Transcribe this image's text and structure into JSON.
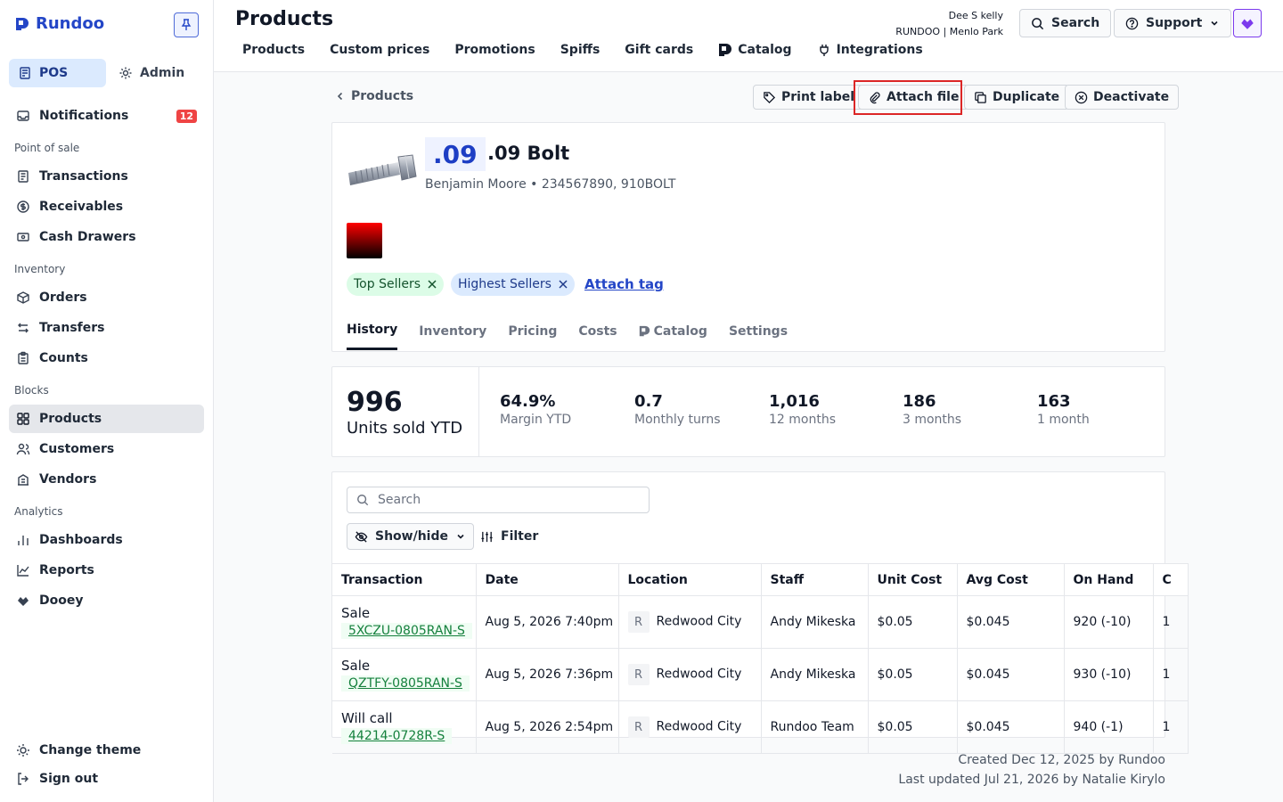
{
  "brand": {
    "name": "Rundoo"
  },
  "sidebar": {
    "modes": [
      {
        "label": "POS",
        "icon": "store-icon"
      },
      {
        "label": "Admin",
        "icon": "gear-icon"
      }
    ],
    "notifications": {
      "label": "Notifications",
      "count": "12"
    },
    "sections": [
      {
        "title": "Point of sale",
        "items": [
          {
            "label": "Transactions"
          },
          {
            "label": "Receivables"
          },
          {
            "label": "Cash Drawers"
          }
        ]
      },
      {
        "title": "Inventory",
        "items": [
          {
            "label": "Orders"
          },
          {
            "label": "Transfers"
          },
          {
            "label": "Counts"
          }
        ]
      },
      {
        "title": "Blocks",
        "items": [
          {
            "label": "Products"
          },
          {
            "label": "Customers"
          },
          {
            "label": "Vendors"
          }
        ]
      },
      {
        "title": "Analytics",
        "items": [
          {
            "label": "Dashboards"
          },
          {
            "label": "Reports"
          },
          {
            "label": "Dooey"
          }
        ]
      }
    ],
    "bottom": [
      {
        "label": "Change theme"
      },
      {
        "label": "Sign out"
      }
    ]
  },
  "header": {
    "title": "Products",
    "tabs": [
      {
        "label": "Products"
      },
      {
        "label": "Custom prices"
      },
      {
        "label": "Promotions"
      },
      {
        "label": "Spiffs"
      },
      {
        "label": "Gift cards"
      },
      {
        "label": "Catalog"
      },
      {
        "label": "Integrations"
      }
    ],
    "user": {
      "name": "Dee S kelly",
      "org": "RUNDOO | Menlo Park"
    },
    "search_label": "Search",
    "support_label": "Support"
  },
  "product": {
    "back_label": "Products",
    "actions": {
      "print": "Print label",
      "attach": "Attach file",
      "duplicate": "Duplicate",
      "deactivate": "Deactivate"
    },
    "sku_chip": ".09",
    "name": ".09 Bolt",
    "meta": "Benjamin Moore • 234567890, 910BOLT",
    "tags": [
      {
        "label": "Top Sellers"
      },
      {
        "label": "Highest Sellers"
      }
    ],
    "attach_tag": "Attach tag",
    "tabs": [
      {
        "label": "History"
      },
      {
        "label": "Inventory"
      },
      {
        "label": "Pricing"
      },
      {
        "label": "Costs"
      },
      {
        "label": "Catalog"
      },
      {
        "label": "Settings"
      }
    ],
    "active_tab": "History"
  },
  "stats": {
    "main": {
      "value": "996",
      "label": "Units sold YTD"
    },
    "items": [
      {
        "value": "64.9%",
        "label": "Margin YTD"
      },
      {
        "value": "0.7",
        "label": "Monthly turns"
      },
      {
        "value": "1,016",
        "label": "12 months"
      },
      {
        "value": "186",
        "label": "3 months"
      },
      {
        "value": "163",
        "label": "1 month"
      }
    ]
  },
  "history": {
    "search_placeholder": "Search",
    "showhide_label": "Show/hide",
    "filter_label": "Filter",
    "columns": [
      "Transaction",
      "Date",
      "Location",
      "Staff",
      "Unit Cost",
      "Avg Cost",
      "On Hand",
      "C"
    ],
    "rows": [
      {
        "type": "Sale",
        "id": "5XCZU-0805RAN-S",
        "date": "Aug 5, 2026 7:40pm",
        "loc_chip": "R",
        "location": "Redwood City",
        "staff": "Andy Mikeska",
        "unit_cost": "$0.05",
        "avg_cost": "$0.045",
        "on_hand": "920 (-10)",
        "extra": "1"
      },
      {
        "type": "Sale",
        "id": "QZTFY-0805RAN-S",
        "date": "Aug 5, 2026 7:36pm",
        "loc_chip": "R",
        "location": "Redwood City",
        "staff": "Andy Mikeska",
        "unit_cost": "$0.05",
        "avg_cost": "$0.045",
        "on_hand": "930 (-10)",
        "extra": "1"
      },
      {
        "type": "Will call",
        "id": "44214-0728R-S",
        "date": "Aug 5, 2026 2:54pm",
        "loc_chip": "R",
        "location": "Redwood City",
        "staff": "Rundoo Team",
        "unit_cost": "$0.05",
        "avg_cost": "$0.045",
        "on_hand": "940 (-1)",
        "extra": "1"
      }
    ]
  },
  "footer": {
    "created": "Created Dec 12, 2025 by Rundoo",
    "updated": "Last updated Jul 21, 2026 by Natalie Kirylo"
  }
}
